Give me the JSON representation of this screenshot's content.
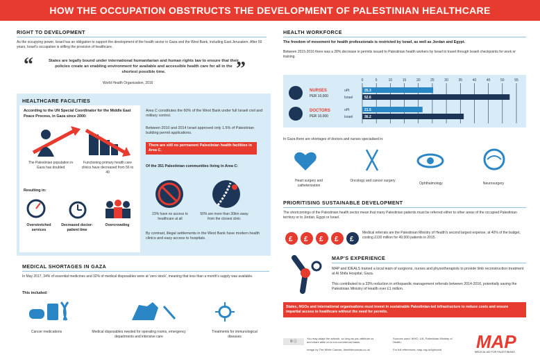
{
  "title": "HOW THE OCCUPATION OBSTRUCTS THE DEVELOPMENT OF PALESTINIAN HEALTHCARE",
  "right_to_dev": {
    "heading": "RIGHT TO DEVELOPMENT",
    "intro": "As the occupying power, Israel has an obligation to support the development of the health sector in Gaza and the West Bank, including East Jerusalem. After 50 years, Israel's occupation is stifling the provision of healthcare.",
    "quote": "States are legally bound under international humanitarian and human rights law to ensure that their policies create an enabling environment for available and accessible health care for all in the shortest possible time.",
    "source": "World Health Organization, 2016"
  },
  "facilities": {
    "heading": "HEALTHCARE FACILITIES",
    "un_text": "According to the UN Special Coordinator for the Middle East Peace Process, in Gaza since 2000:",
    "pop_text": "The Palestinian population in Gaza has doubled",
    "clinics_text": "Functioning primary health care clinics have decreased from 56 to 49",
    "resulting": "Resulting in:",
    "r1": "Overstretched services",
    "r2": "Decreased doctor-patient time",
    "r3": "Overcrowding",
    "areac": "Area C constitutes the 60% of the West Bank under full Israeli civil and military control.",
    "permits": "Between 2010 and 2014 Israel approved only 1.5% of Palestinian building permit applications.",
    "no_perm": "There are still no permanent Palestinian health facilities in Area C.",
    "of351": "Of the 351 Palestinian communities living in Area C:",
    "stat1": "23% have no access to healthcare at all",
    "stat2": "50% are more than 30km away from the closest clinic",
    "settlements": "By contrast, illegal settlements in the West Bank have modern health clinics and easy access to hospitals."
  },
  "shortages": {
    "heading": "MEDICAL SHORTAGES IN GAZA",
    "text": "In May 2017, 34% of essential medicines and 32% of medical disposables were at 'zero stock', meaning that less than a month's supply was available.",
    "included": "This included:",
    "c1": "Cancer medications",
    "c2": "Medical disposables needed for operating rooms, emergency departments and intensive care",
    "c3": "Treatments for immunological diseases"
  },
  "workforce": {
    "heading": "HEALTH WORKFORCE",
    "t1": "The freedom of movement for health professionals is restricted by Israel, as well as Jordan and Egypt.",
    "t2": "Between 2015-2016 there was a 28% decrease in permits issued to Palestinian health workers by Israel to travel through Israeli checkpoints for work or training.",
    "gaza_short": "In Gaza there are shortages of doctors and nurses specialised in:",
    "s1": "Heart surgery and catheterization",
    "s2": "Oncology and cancer surgery",
    "s3": "Ophthalmology",
    "s4": "Neurosurgery"
  },
  "chart_data": {
    "type": "bar",
    "ticks": [
      "0",
      "5",
      "10",
      "15",
      "20",
      "25",
      "30",
      "35",
      "40",
      "45",
      "50",
      "55"
    ],
    "xlim": [
      0,
      55
    ],
    "groups": [
      {
        "name": "NURSES",
        "sub": "PER 10,000",
        "rows": [
          {
            "label": "oPt",
            "value": 25.3,
            "text": "25.3"
          },
          {
            "label": "Israel",
            "value": 52.6,
            "text": "52.6"
          }
        ]
      },
      {
        "name": "DOCTORS",
        "sub": "PER 10,000",
        "rows": [
          {
            "label": "oPt",
            "value": 21.5,
            "text": "21.5"
          },
          {
            "label": "Israel",
            "value": 36.2,
            "text": "36.2"
          }
        ]
      }
    ]
  },
  "prioritising": {
    "heading": "PRIORITISING SUSTAINABLE DEVELOPMENT",
    "text": "The shortcomings of the Palestinian health sector mean that many Palestinian patients must be referred either to other areas of the occupied Palestinian territory or to Jordan, Egypt or Israel.",
    "referrals": "Medical referrals are the Palestinian Ministry of Health's second largest expense, at 40% of the budget, costing £130 million for 49,000 patients in 2015.",
    "pound": "£"
  },
  "maps": {
    "heading": "MAP'S EXPERIENCE",
    "t1": "MAP and IDEALS trained a local team of surgeons, nurses and physiotherapists to provide limb reconstruction treatment at Al Shifa Hospital, Gaza.",
    "t2": "This contributed to a 33% reduction in orthopaedic management referrals between 2014-2016, potentially saving the Palestinian Ministry of Health over £1 million."
  },
  "cta": "States, NGOs and international organisations must invest in sustainable Palestinian-led infrastructure to reduce costs and ensure impartial access to healthcare without the need for permits.",
  "footer": {
    "cc": "You may adapt the artwork, so long as you attribute us and share alike on a non-commercial basis.",
    "image": "Image by The White Canvas, thewhitecanvas.co.uk",
    "sources": "Sources used: WHO, UN, Palestinian Ministry of Health",
    "info": "For full references: map.org.uk/lghcovid",
    "logo": "MAP",
    "logo_sub": "MEDICAL AID FOR PALESTINIANS"
  },
  "colors": {
    "red": "#e63b2e",
    "blue": "#2a86c4",
    "light_blue": "#d8ecf7",
    "navy": "#1d3557"
  }
}
